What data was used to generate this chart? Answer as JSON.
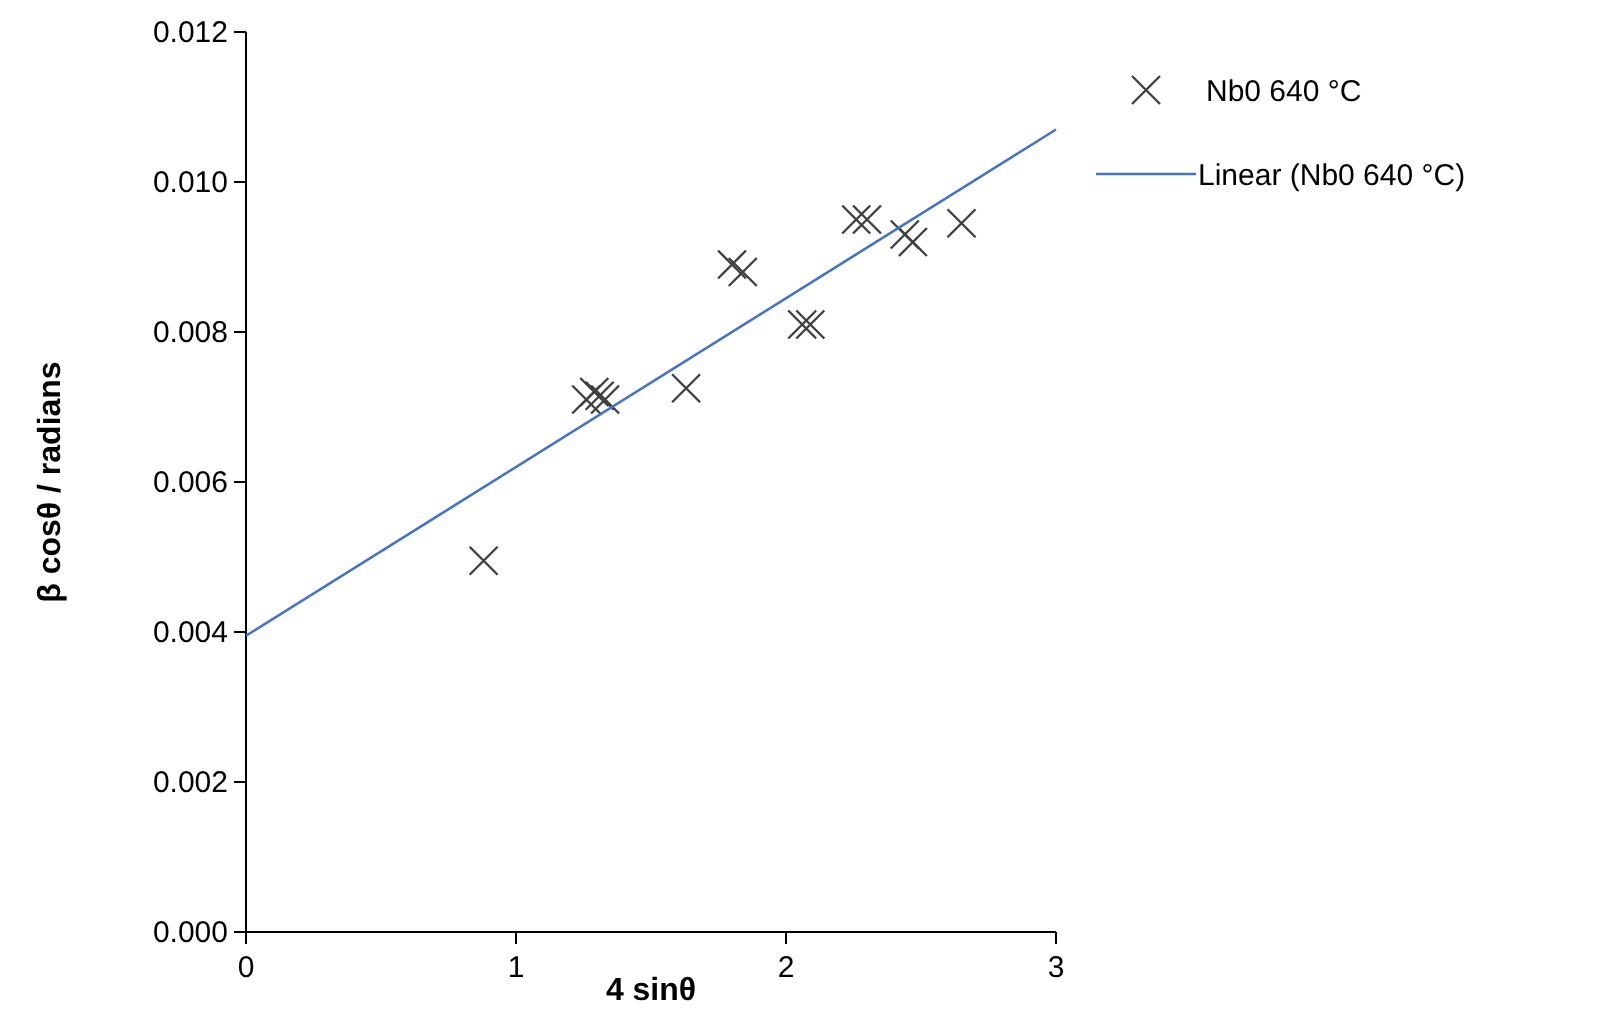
{
  "chart_data": {
    "type": "scatter",
    "xlabel": "4 sinθ",
    "ylabel": "β cosθ / radians",
    "xlim": [
      0,
      3
    ],
    "ylim": [
      0,
      0.012
    ],
    "xticks": [
      0,
      1,
      2,
      3
    ],
    "yticks": [
      {
        "value": 0,
        "label": "0.000"
      },
      {
        "value": 0.002,
        "label": "0.002"
      },
      {
        "value": 0.004,
        "label": "0.004"
      },
      {
        "value": 0.006,
        "label": "0.006"
      },
      {
        "value": 0.008,
        "label": "0.008"
      },
      {
        "value": 0.01,
        "label": "0.010"
      },
      {
        "value": 0.012,
        "label": "0.012"
      }
    ],
    "grid": false,
    "legend": "top right",
    "series": [
      {
        "name": "Nb0 640 °C",
        "marker": "cross",
        "color": "#404040",
        "x": [
          0.88,
          1.26,
          1.29,
          1.31,
          1.33,
          1.63,
          1.8,
          1.84,
          2.06,
          2.09,
          2.26,
          2.3,
          2.44,
          2.47,
          2.65
        ],
        "values": [
          0.00495,
          0.0071,
          0.0072,
          0.00715,
          0.0071,
          0.00725,
          0.0089,
          0.0088,
          0.0081,
          0.0081,
          0.0095,
          0.0095,
          0.0093,
          0.0092,
          0.00945
        ]
      },
      {
        "name": "Linear (Nb0 640 °C)",
        "type": "line",
        "color": "#4472c4",
        "line_style": "solid",
        "x": [
          0,
          3
        ],
        "values": [
          0.00395,
          0.0107
        ]
      }
    ]
  }
}
